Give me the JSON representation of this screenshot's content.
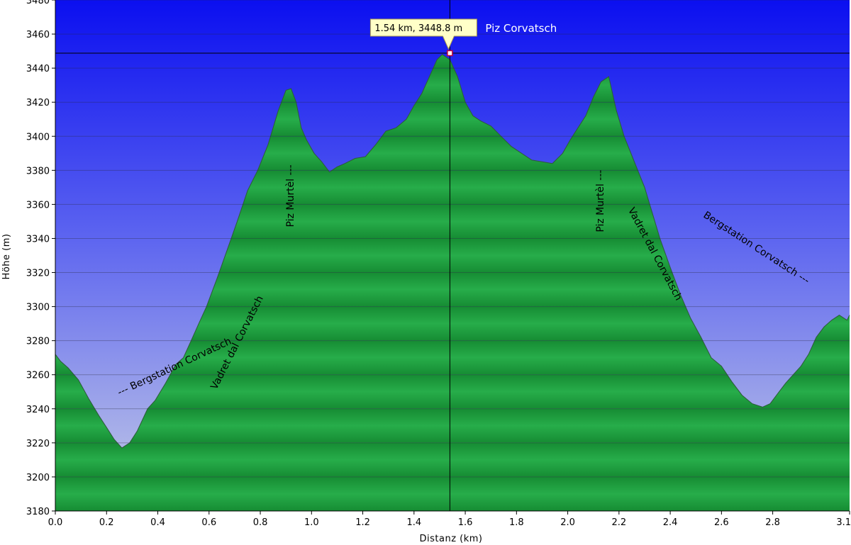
{
  "chart_data": {
    "type": "area",
    "title": "",
    "xlabel": "Distanz  (km)",
    "ylabel": "Höhe (m)",
    "xlim": [
      0.0,
      3.1
    ],
    "ylim": [
      3180,
      3480
    ],
    "x_ticks": [
      "0.0",
      "0.2",
      "0.4",
      "0.6",
      "0.8",
      "1.0",
      "1.2",
      "1.4",
      "1.6",
      "1.8",
      "2.0",
      "2.2",
      "2.4",
      "2.6",
      "2.8",
      "3.1"
    ],
    "x_tick_values": [
      0.0,
      0.2,
      0.4,
      0.6,
      0.8,
      1.0,
      1.2,
      1.4,
      1.6,
      1.8,
      2.0,
      2.2,
      2.4,
      2.6,
      2.8,
      3.1
    ],
    "y_ticks": [
      3180,
      3200,
      3220,
      3240,
      3260,
      3280,
      3300,
      3320,
      3340,
      3360,
      3380,
      3400,
      3420,
      3440,
      3460,
      3480
    ],
    "grid": "horizontal",
    "series": [
      {
        "x": [
          0.0,
          0.02,
          0.05,
          0.09,
          0.13,
          0.17,
          0.2,
          0.23,
          0.26,
          0.29,
          0.32,
          0.36,
          0.39,
          0.43,
          0.47,
          0.5,
          0.53,
          0.56,
          0.59,
          0.63,
          0.67,
          0.71,
          0.75,
          0.79,
          0.83,
          0.87,
          0.9,
          0.92,
          0.94,
          0.96,
          0.98,
          1.01,
          1.04,
          1.07,
          1.1,
          1.13,
          1.17,
          1.21,
          1.25,
          1.29,
          1.33,
          1.37,
          1.4,
          1.43,
          1.46,
          1.49,
          1.51,
          1.54,
          1.57,
          1.6,
          1.63,
          1.66,
          1.7,
          1.74,
          1.78,
          1.82,
          1.86,
          1.9,
          1.94,
          1.98,
          2.01,
          2.04,
          2.07,
          2.1,
          2.13,
          2.16,
          2.19,
          2.22,
          2.26,
          2.3,
          2.33,
          2.36,
          2.4,
          2.44,
          2.48,
          2.52,
          2.56,
          2.6,
          2.64,
          2.68,
          2.72,
          2.76,
          2.79,
          2.82,
          2.85,
          2.88,
          2.91,
          2.94,
          2.97,
          3.0,
          3.03,
          3.06,
          3.09,
          3.1
        ],
        "y": [
          3272,
          3268,
          3264,
          3257,
          3246,
          3236,
          3229,
          3222,
          3217,
          3220,
          3227,
          3240,
          3245,
          3255,
          3266,
          3270,
          3280,
          3290,
          3300,
          3316,
          3333,
          3350,
          3368,
          3380,
          3395,
          3415,
          3427,
          3428,
          3420,
          3405,
          3398,
          3390,
          3385,
          3379,
          3382,
          3384,
          3387,
          3388,
          3395,
          3403,
          3405,
          3410,
          3418,
          3425,
          3435,
          3445,
          3448,
          3445,
          3435,
          3420,
          3412,
          3409,
          3406,
          3400,
          3394,
          3390,
          3386,
          3385,
          3384,
          3390,
          3398,
          3405,
          3412,
          3423,
          3432,
          3435,
          3415,
          3400,
          3385,
          3370,
          3355,
          3340,
          3323,
          3307,
          3293,
          3282,
          3270,
          3265,
          3256,
          3248,
          3243,
          3241,
          3243,
          3249,
          3255,
          3260,
          3265,
          3272,
          3282,
          3288,
          3292,
          3295,
          3292,
          3295
        ],
        "color": "#21a143"
      }
    ],
    "highlight": {
      "x": 1.54,
      "y": 3448.8,
      "label": "1.54 km, 3448.8 m",
      "name": "Piz Corvatsch"
    },
    "annotations": [
      {
        "text": "--- Bergstation Corvatsch",
        "x": 0.47,
        "y": 3263
      },
      {
        "text": "Vadret dal Corvatsch",
        "x": 0.72,
        "y": 3278
      },
      {
        "text": "Piz Murtèl ---",
        "x": 0.93,
        "y": 3365
      },
      {
        "text": "Piz Murtèl ---",
        "x": 2.14,
        "y": 3362
      },
      {
        "text": "Vadret dal Corvatsch",
        "x": 2.33,
        "y": 3330
      },
      {
        "text": "Bergstation Corvatsch ---",
        "x": 2.73,
        "y": 3333
      }
    ],
    "colors": {
      "sky_top": "#0b0ff0",
      "sky_bottom": "#b0bde8",
      "terrain": "#21a143",
      "terrain_stripe": "#158f33"
    }
  }
}
